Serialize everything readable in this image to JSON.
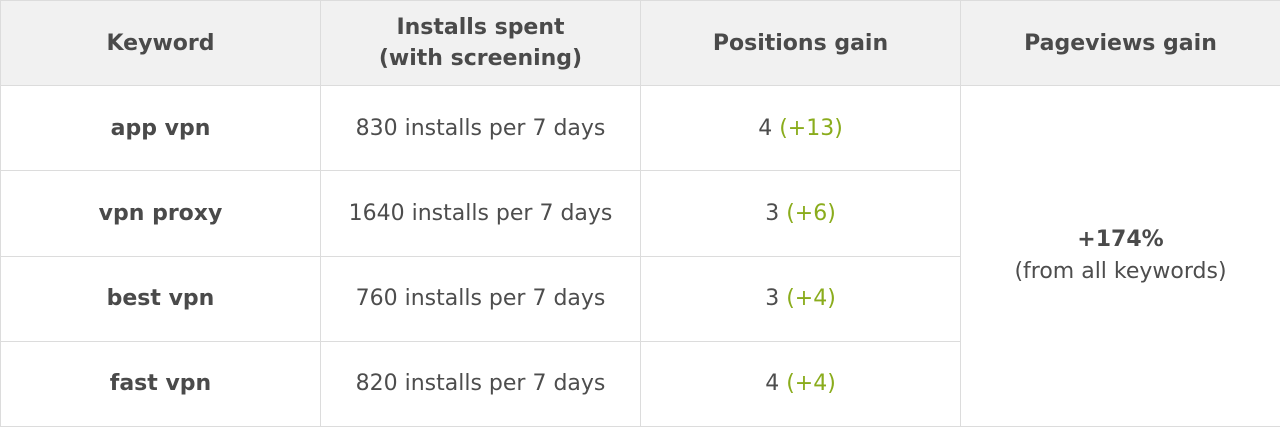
{
  "headers": {
    "keyword": "Keyword",
    "installs_line1": "Installs spent",
    "installs_line2": "(with screening)",
    "positions": "Positions gain",
    "pageviews": "Pageviews gain"
  },
  "rows": [
    {
      "keyword": "app vpn",
      "installs": "830 installs per 7 days",
      "position": "4",
      "gain": "(+13)"
    },
    {
      "keyword": "vpn proxy",
      "installs": "1640 installs per 7 days",
      "position": "3",
      "gain": "(+6)"
    },
    {
      "keyword": "best vpn",
      "installs": "760 installs per 7 days",
      "position": "3",
      "gain": "(+4)"
    },
    {
      "keyword": "fast vpn",
      "installs": "820 installs per 7 days",
      "position": "4",
      "gain": "(+4)"
    }
  ],
  "pageviews": {
    "value": "+174%",
    "note": "(from all keywords)"
  },
  "colors": {
    "header_bg": "#f1f1f1",
    "gain_green": "#8aac1c",
    "border": "#dcdcdc"
  }
}
